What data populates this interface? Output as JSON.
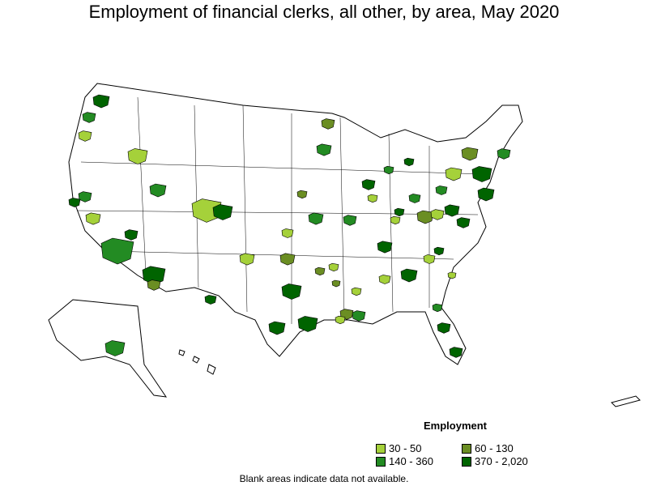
{
  "title": "Employment of financial clerks, all other, by area, May 2020",
  "legend": {
    "title": "Employment",
    "items": [
      {
        "label": "30 - 50",
        "color": "#a5d13a"
      },
      {
        "label": "60 - 130",
        "color": "#6b8e23"
      },
      {
        "label": "140 - 360",
        "color": "#238b23"
      },
      {
        "label": "370 - 2,020",
        "color": "#006400"
      }
    ]
  },
  "note": "Blank areas indicate data not available."
}
